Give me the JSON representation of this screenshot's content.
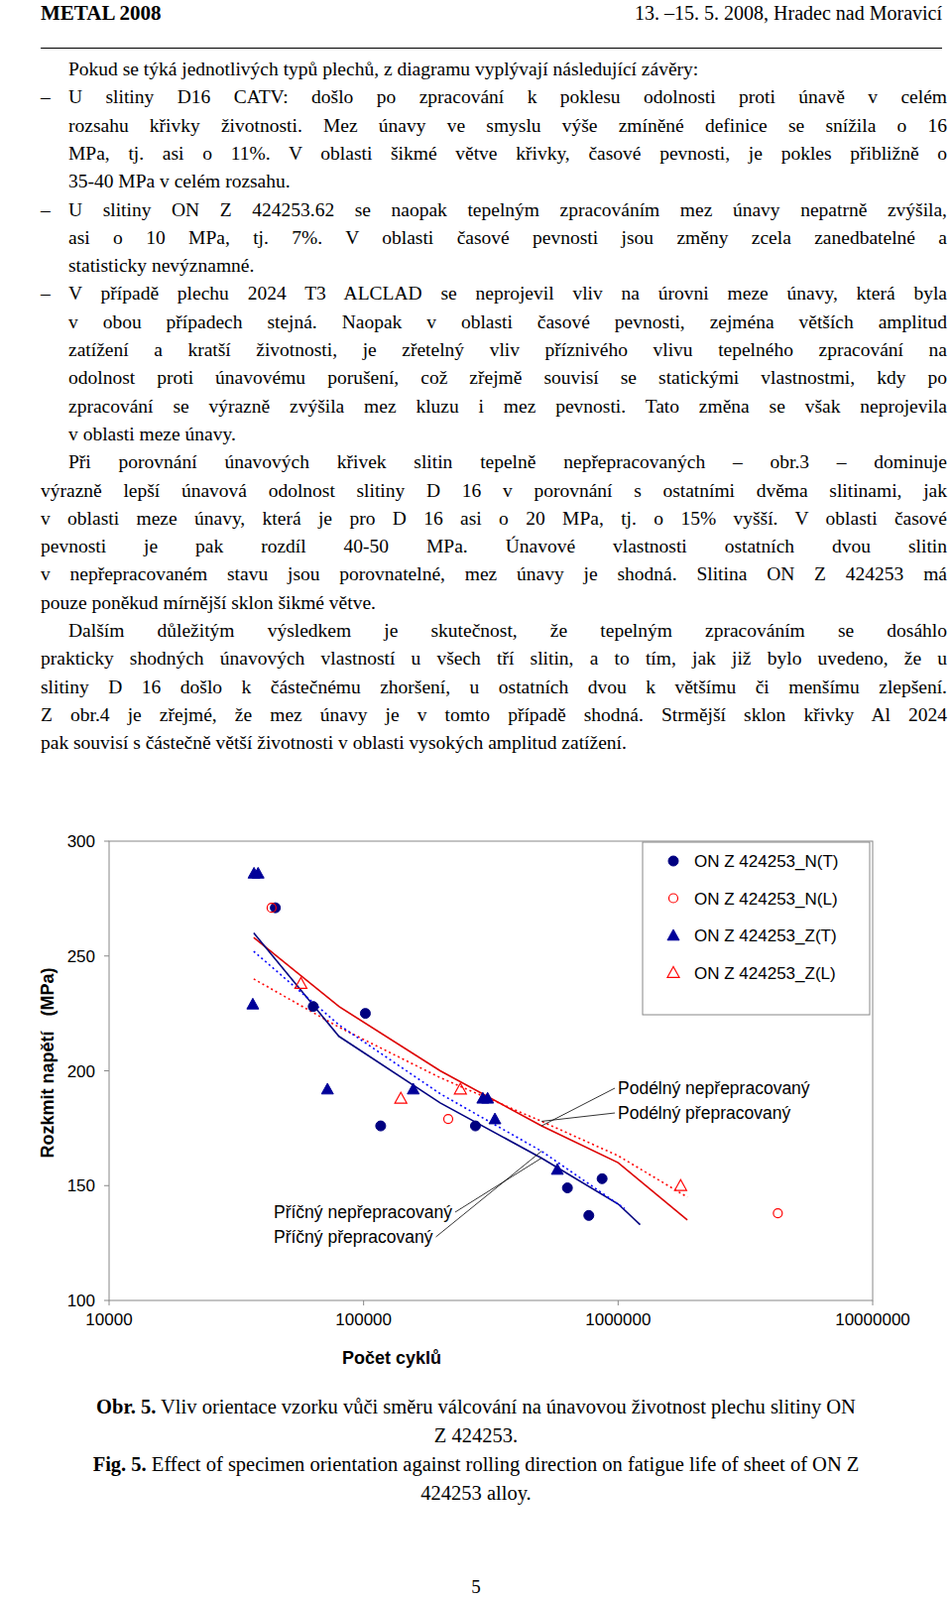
{
  "header": {
    "left": "METAL 2008",
    "right": "13. –15. 5. 2008, Hradec nad Moravicí"
  },
  "body": [
    {
      "type": "paragraph",
      "lines": [
        "Pokud se týká jednotlivých typů plechů, z diagramu vyplývají následující závěry:"
      ]
    },
    {
      "type": "bullet",
      "marker": "–",
      "lines": [
        "U slitiny D16 CATV: došlo po zpracování k poklesu odolnosti proti únavě v celém",
        "rozsahu křivky životnosti. Mez únavy ve smyslu výše zmíněné definice se snížila o 16",
        "MPa, tj. asi o 11%. V oblasti šikmé větve křivky, časové pevnosti, je pokles přibližně o",
        "35-40 MPa v celém rozsahu."
      ]
    },
    {
      "type": "bullet",
      "marker": "–",
      "lines": [
        "U slitiny ON Z 424253.62 se naopak tepelným zpracováním mez únavy nepatrně zvýšila,",
        "asi o 10 MPa, tj. 7%. V oblasti časové pevnosti jsou změny zcela zanedbatelné a",
        "statisticky nevýznamné."
      ]
    },
    {
      "type": "bullet",
      "marker": "–",
      "lines": [
        "V případě plechu 2024 T3 ALCLAD se neprojevil vliv na úrovni meze únavy, která byla",
        "v obou případech stejná. Naopak v oblasti časové pevnosti, zejména větších amplitud",
        "zatížení a kratší životnosti, je zřetelný vliv příznivého vlivu tepelného zpracování na",
        "odolnost proti únavovému porušení, což zřejmě souvisí se statickými vlastnostmi, kdy po",
        "zpracování se výrazně zvýšila mez kluzu i mez pevnosti. Tato změna se však neprojevila",
        "v oblasti meze únavy."
      ]
    },
    {
      "type": "paragraph",
      "lines": [
        "Při porovnání únavových křivek slitin tepelně nepřepracovaných – obr.3 – dominuje",
        "výrazně lepší únavová odolnost slitiny D 16 v porovnání s ostatními dvěma slitinami, jak",
        "v oblasti meze únavy, která je pro D 16 asi o 20 MPa, tj. o 15% vyšší. V oblasti časové",
        "pevnosti je pak rozdíl 40-50 MPa. Únavové vlastnosti ostatních dvou slitin",
        "v nepřepracovaném stavu jsou porovnatelné, mez únavy je shodná. Slitina ON Z 424253 má",
        "pouze poněkud mírnější sklon šikmé větve."
      ]
    },
    {
      "type": "paragraph",
      "lines": [
        "Dalším důležitým výsledkem je skutečnost, že tepelným zpracováním se dosáhlo",
        "prakticky shodných únavových vlastností u všech tří slitin, a to tím, jak již bylo uvedeno, že u",
        "slitiny D 16 došlo k částečnému zhoršení, u ostatních dvou k většímu či menšímu zlepšení.",
        "Z obr.4 je zřejmé, že mez únavy je v tomto případě shodná. Strmější sklon křivky Al 2024",
        "pak souvisí s částečně větší životnosti v oblasti vysokých amplitud zatížení."
      ]
    }
  ],
  "chart_data": {
    "type": "scatter",
    "x_label": "Počet cyklů",
    "y_label": "Rozkmit napětí   (MPa)",
    "log": "x",
    "grid": false,
    "legend": "upper right",
    "xlim": [
      10000,
      10000000
    ],
    "xticks": [
      10000,
      100000,
      1000000,
      10000000
    ],
    "ylim": [
      100,
      300
    ],
    "yticks": [
      100,
      150,
      200,
      250,
      300
    ],
    "series": [
      {
        "name": "ON Z 424253_N(T)",
        "type": "scatter",
        "marker": "circle",
        "color": "#000080",
        "x": [
          45000,
          63400,
          101600,
          116700,
          275000,
          632000,
          865000,
          767000
        ],
        "values": [
          271,
          228,
          225,
          176,
          176,
          149,
          153,
          137
        ]
      },
      {
        "name": "ON Z 424253_N(L)",
        "type": "scatter",
        "marker": "circle-open",
        "color": "#ff0000",
        "x": [
          43500,
          215000,
          4240000
        ],
        "values": [
          271,
          179,
          138
        ]
      },
      {
        "name": "ON Z 424253_Z(T)",
        "type": "scatter",
        "marker": "triangle",
        "color": "#000099",
        "x": [
          37100,
          38500,
          36700,
          72100,
          156700,
          294000,
          307000,
          328000,
          577000
        ],
        "values": [
          286,
          286,
          229,
          192,
          192,
          188,
          188,
          179,
          157
        ]
      },
      {
        "name": "ON Z 424253_Z(L)",
        "type": "scatter",
        "marker": "triangle-open",
        "color": "#ff0000",
        "x": [
          56700,
          140000,
          240000,
          1760000
        ],
        "values": [
          238,
          188,
          192,
          150
        ]
      },
      {
        "name": "Podélný nepřepracovaný",
        "type": "line",
        "line_style": "solid",
        "color": "#dd0000",
        "x": [
          37000,
          80000,
          200000,
          500000,
          1000000,
          1870000
        ],
        "values": [
          258,
          228,
          200,
          176,
          160,
          135
        ]
      },
      {
        "name": "Podélný přepracovaný",
        "type": "line",
        "line_style": "dotted",
        "color": "#ff0000",
        "x": [
          37000,
          80000,
          200000,
          500000,
          1000000,
          1870000
        ],
        "values": [
          240,
          219,
          197,
          178,
          163,
          145
        ]
      },
      {
        "name": "Příčný nepřepracovaný",
        "type": "line",
        "line_style": "solid",
        "color": "#000080",
        "x": [
          37000,
          80000,
          200000,
          500000,
          1000000,
          1220000
        ],
        "values": [
          260,
          215,
          186,
          162,
          142,
          133
        ]
      },
      {
        "name": "Příčný přepracovaný",
        "type": "line",
        "line_style": "dotted",
        "color": "#0000ff",
        "x": [
          37000,
          80000,
          200000,
          500000,
          1060000
        ],
        "values": [
          252,
          220,
          190,
          165,
          140
        ]
      }
    ]
  },
  "caption": {
    "cz": {
      "label": "Obr. 5.",
      "lines": [
        "Vliv orientace vzorku vůči směru válcování na únavovou životnost plechu slitiny ON",
        "Z 424253."
      ]
    },
    "en": {
      "label": "Fig. 5.",
      "lines": [
        "Effect of specimen orientation against rolling direction on fatigue life of sheet of ON Z",
        "424253 alloy."
      ]
    }
  },
  "page_number": "5"
}
